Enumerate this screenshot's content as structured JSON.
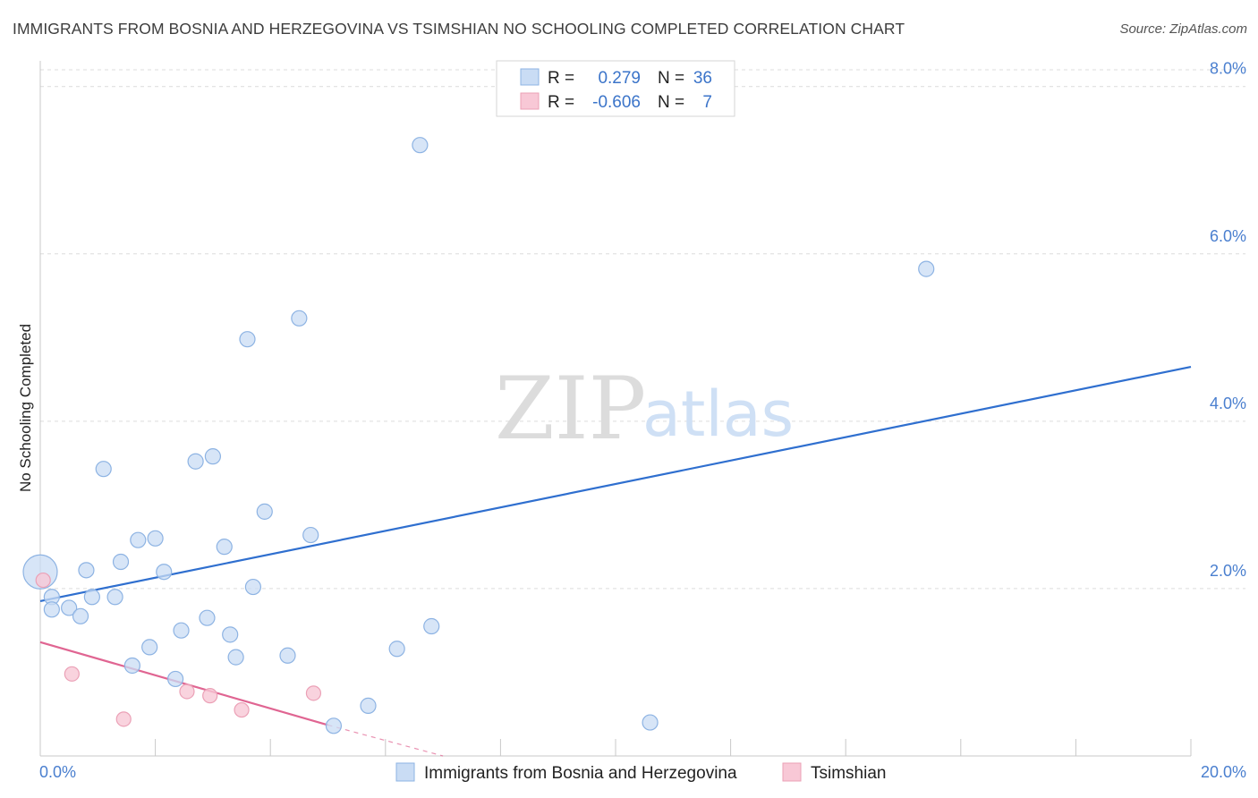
{
  "title": "IMMIGRANTS FROM BOSNIA AND HERZEGOVINA VS TSIMSHIAN NO SCHOOLING COMPLETED CORRELATION CHART",
  "source": "Source: ZipAtlas.com",
  "watermark": {
    "zip": "ZIP",
    "atlas": "atlas"
  },
  "colors": {
    "blue": "#4a7fcf",
    "blue_fill": "#c9dcf4",
    "blue_stroke": "#8db3e3",
    "blue_line": "#2f6fcf",
    "pink_fill": "#f8c8d6",
    "pink_stroke": "#eba0b6",
    "pink_line": "#e06592",
    "grid": "#dcdcdc"
  },
  "legend": {
    "rows": [
      {
        "r_label": "R =",
        "r_value": "0.279",
        "n_label": "N =",
        "n_value": "36",
        "series": "blue"
      },
      {
        "r_label": "R =",
        "r_value": "-0.606",
        "n_label": "N =",
        "n_value": "7",
        "series": "pink"
      }
    ]
  },
  "chart_data": {
    "type": "scatter",
    "xlabel": "",
    "ylabel": "No Schooling Completed",
    "xlim": [
      0,
      20
    ],
    "ylim": [
      0,
      8.2
    ],
    "x_tick_labels": {
      "left": "0.0%",
      "right": "20.0%"
    },
    "y_ticks": [
      2,
      4,
      6,
      8
    ],
    "y_tick_labels": [
      "2.0%",
      "4.0%",
      "6.0%",
      "8.0%"
    ],
    "grid": true,
    "series": [
      {
        "name": "Immigrants from Bosnia and Herzegovina",
        "color": "blue",
        "points": [
          [
            0.0,
            2.2
          ],
          [
            0.2,
            1.9
          ],
          [
            0.2,
            1.75
          ],
          [
            0.5,
            1.77
          ],
          [
            0.7,
            1.67
          ],
          [
            0.8,
            2.22
          ],
          [
            0.9,
            1.9
          ],
          [
            1.1,
            3.43
          ],
          [
            1.3,
            1.9
          ],
          [
            1.4,
            2.32
          ],
          [
            1.6,
            1.08
          ],
          [
            1.7,
            2.58
          ],
          [
            1.9,
            1.3
          ],
          [
            2.0,
            2.6
          ],
          [
            2.15,
            2.2
          ],
          [
            2.35,
            0.92
          ],
          [
            2.45,
            1.5
          ],
          [
            2.7,
            3.52
          ],
          [
            2.9,
            1.65
          ],
          [
            3.0,
            3.58
          ],
          [
            3.2,
            2.5
          ],
          [
            3.3,
            1.45
          ],
          [
            3.4,
            1.18
          ],
          [
            3.6,
            4.98
          ],
          [
            3.7,
            2.02
          ],
          [
            3.9,
            2.92
          ],
          [
            4.3,
            1.2
          ],
          [
            4.5,
            5.23
          ],
          [
            4.7,
            2.64
          ],
          [
            5.1,
            0.36
          ],
          [
            5.7,
            0.6
          ],
          [
            6.2,
            1.28
          ],
          [
            6.6,
            7.3
          ],
          [
            6.8,
            1.55
          ],
          [
            10.6,
            0.4
          ],
          [
            15.4,
            5.82
          ]
        ],
        "sizes": [
          "large",
          "normal",
          "normal",
          "normal",
          "normal",
          "normal",
          "normal",
          "normal",
          "normal",
          "normal",
          "normal",
          "normal",
          "normal",
          "normal",
          "normal",
          "normal",
          "normal",
          "normal",
          "normal",
          "normal",
          "normal",
          "normal",
          "normal",
          "normal",
          "normal",
          "normal",
          "normal",
          "normal",
          "normal",
          "normal",
          "normal",
          "normal",
          "normal",
          "normal",
          "normal",
          "normal"
        ],
        "trend": {
          "x": [
            0,
            20
          ],
          "y": [
            1.85,
            4.65
          ],
          "style": "solid"
        }
      },
      {
        "name": "Tsimshian",
        "color": "pink",
        "points": [
          [
            0.05,
            2.1
          ],
          [
            0.55,
            0.98
          ],
          [
            1.45,
            0.44
          ],
          [
            2.55,
            0.77
          ],
          [
            2.95,
            0.72
          ],
          [
            3.5,
            0.55
          ],
          [
            4.75,
            0.75
          ]
        ],
        "trend": {
          "x": [
            0,
            5.0
          ],
          "y": [
            1.36,
            0.37
          ],
          "style": "solid",
          "extension": {
            "x": [
              5.0,
              7.0
            ],
            "y": [
              0.37,
              -0.02
            ],
            "style": "dashed"
          }
        }
      }
    ]
  }
}
